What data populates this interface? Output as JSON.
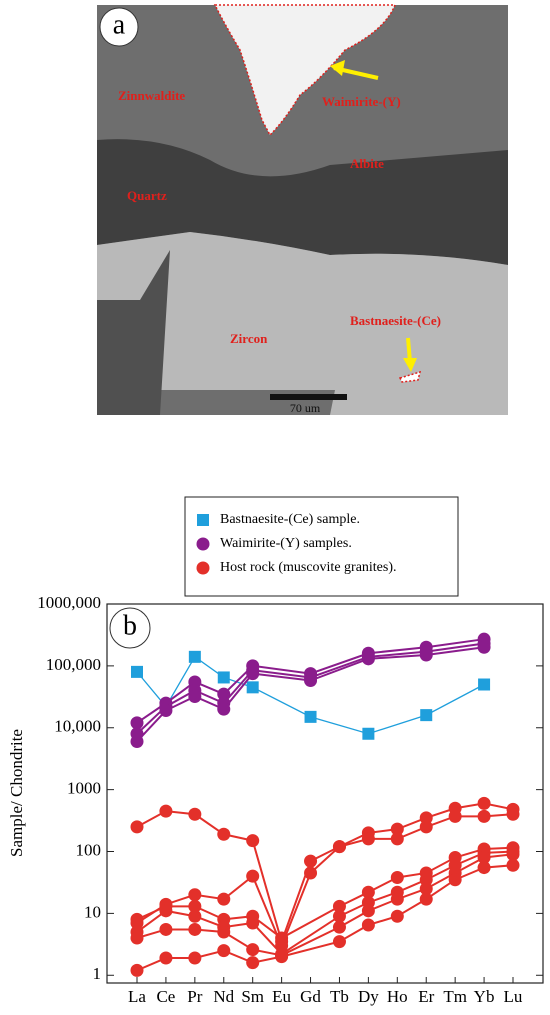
{
  "image": {
    "panel_label": "a",
    "labels": [
      "Zinnwaldite",
      "Waimirite-(Y)",
      "Albite",
      "Quartz",
      "Zircon",
      "Bastnaesite-(Ce)"
    ],
    "scale_bar": "70 um"
  },
  "chart_data": {
    "type": "line",
    "panel_label": "b",
    "ylabel": "Sample/ Chondrite",
    "log_scale": true,
    "categories": [
      "La",
      "Ce",
      "Pr",
      "Nd",
      "Sm",
      "Eu",
      "Gd",
      "Tb",
      "Dy",
      "Ho",
      "Er",
      "Tm",
      "Yb",
      "Lu"
    ],
    "ylim": [
      0.75,
      1000000
    ],
    "yticks": [
      1,
      10,
      100,
      1000,
      {
        "value": 10000,
        "label": "10,000"
      },
      {
        "value": 100000,
        "label": "100,000"
      },
      {
        "value": 1000000,
        "label": "1000,000"
      }
    ],
    "series": [
      {
        "name": "Bastnaesite-(Ce) sample.",
        "color": "#1f9fdc",
        "marker": "square",
        "lines": [
          {
            "x": [
              "La",
              "Ce",
              "Pr",
              "Nd",
              "Sm",
              "Gd",
              "Dy",
              "Er",
              "Yb"
            ],
            "values": [
              80000,
              22000,
              140000,
              65000,
              45000,
              15000,
              8000,
              16000,
              50000
            ]
          }
        ]
      },
      {
        "name": "Waimirite-(Y) samples.",
        "color": "#8a1c8c",
        "marker": "circle",
        "lines": [
          {
            "x": [
              "La",
              "Ce",
              "Pr",
              "Nd",
              "Sm",
              "Gd",
              "Dy",
              "Er",
              "Yb"
            ],
            "values": [
              12000,
              25000,
              55000,
              35000,
              100000,
              75000,
              160000,
              200000,
              270000
            ]
          },
          {
            "x": [
              "La",
              "Ce",
              "Pr",
              "Nd",
              "Sm",
              "Gd",
              "Dy",
              "Er",
              "Yb"
            ],
            "values": [
              8000,
              22000,
              40000,
              25000,
              85000,
              65000,
              140000,
              170000,
              230000
            ]
          },
          {
            "x": [
              "La",
              "Ce",
              "Pr",
              "Nd",
              "Sm",
              "Gd",
              "Dy",
              "Er",
              "Yb"
            ],
            "values": [
              6000,
              19000,
              32000,
              20000,
              75000,
              58000,
              130000,
              150000,
              200000
            ]
          }
        ]
      },
      {
        "name": "Host rock (muscovite granites).",
        "color": "#e3302a",
        "marker": "circle",
        "lines": [
          {
            "x": [
              "La",
              "Ce",
              "Pr",
              "Nd",
              "Sm",
              "Eu",
              "Gd",
              "Tb",
              "Dy",
              "Ho",
              "Er",
              "Tm",
              "Yb",
              "Lu"
            ],
            "values": [
              250,
              450,
              400,
              190,
              150,
              3.5,
              70,
              120,
              200,
              230,
              350,
              500,
              600,
              480
            ]
          },
          {
            "x": [
              "La",
              "Ce",
              "Pr",
              "Nd",
              "Sm",
              "Eu",
              "Gd",
              "Tb",
              "Dy",
              "Ho",
              "Er",
              "Tm",
              "Yb",
              "Lu"
            ],
            "values": [
              7,
              14,
              20,
              17,
              40,
              3,
              45,
              120,
              160,
              160,
              250,
              370,
              370,
              400
            ]
          },
          {
            "x": [
              "La",
              "Ce",
              "Pr",
              "Nd",
              "Sm",
              "Eu",
              "Tb",
              "Dy",
              "Ho",
              "Er",
              "Tm",
              "Yb",
              "Lu"
            ],
            "values": [
              8,
              13,
              13,
              8,
              9,
              4,
              13,
              22,
              38,
              45,
              80,
              110,
              115
            ]
          },
          {
            "x": [
              "La",
              "Ce",
              "Pr",
              "Nd",
              "Sm",
              "Eu",
              "Tb",
              "Dy",
              "Ho",
              "Er",
              "Tm",
              "Yb",
              "Lu"
            ],
            "values": [
              5,
              11,
              9,
              6,
              7,
              2.2,
              9,
              15,
              22,
              35,
              60,
              95,
              100
            ]
          },
          {
            "x": [
              "La",
              "Ce",
              "Pr",
              "Nd",
              "Sm",
              "Eu",
              "Tb",
              "Dy",
              "Ho",
              "Er",
              "Tm",
              "Yb",
              "Lu"
            ],
            "values": [
              4,
              5.5,
              5.5,
              5,
              2.6,
              2.1,
              6,
              11,
              17,
              25,
              45,
              80,
              90
            ]
          },
          {
            "x": [
              "La",
              "Ce",
              "Pr",
              "Nd",
              "Sm",
              "Eu",
              "Tb",
              "Dy",
              "Ho",
              "Er",
              "Tm",
              "Yb",
              "Lu"
            ],
            "values": [
              1.2,
              1.9,
              1.9,
              2.5,
              1.6,
              2.0,
              3.5,
              6.5,
              9,
              17,
              35,
              55,
              60
            ]
          }
        ]
      }
    ]
  }
}
